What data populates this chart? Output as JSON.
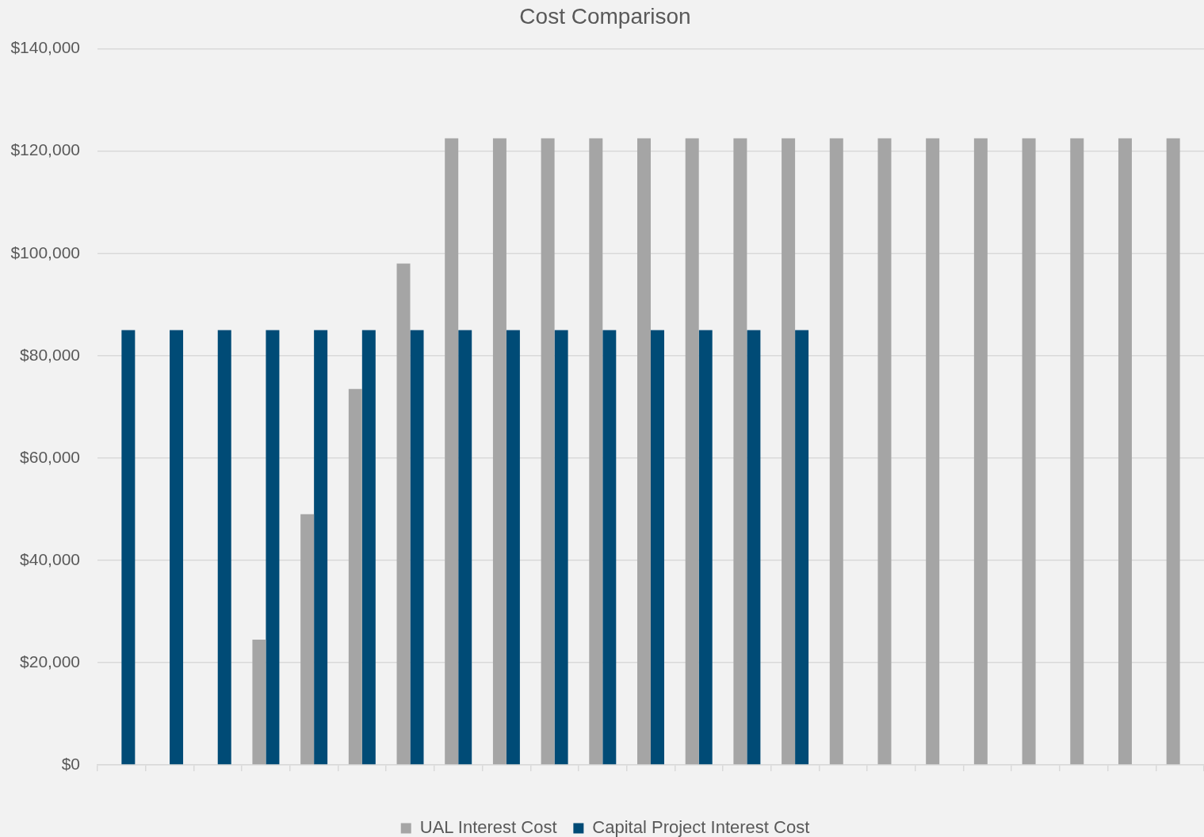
{
  "chart_data": {
    "type": "bar",
    "title": "Cost Comparison",
    "categories": [
      null,
      null,
      null,
      null,
      null,
      null,
      null,
      null,
      null,
      null,
      null,
      null,
      null,
      null,
      null,
      null,
      null,
      null,
      null,
      null,
      null,
      null,
      null
    ],
    "series": [
      {
        "name": "UAL Interest Cost",
        "color": "#a5a5a5",
        "values": [
          null,
          null,
          null,
          24500,
          49000,
          73500,
          98000,
          122500,
          122500,
          122500,
          122500,
          122500,
          122500,
          122500,
          122500,
          122500,
          122500,
          122500,
          122500,
          122500,
          122500,
          122500,
          122500
        ]
      },
      {
        "name": "Capital Project Interest Cost",
        "color": "#004b76",
        "values": [
          85000,
          85000,
          85000,
          85000,
          85000,
          85000,
          85000,
          85000,
          85000,
          85000,
          85000,
          85000,
          85000,
          85000,
          85000,
          null,
          null,
          null,
          null,
          null,
          null,
          null,
          null
        ]
      }
    ],
    "ylim": [
      0,
      140000
    ],
    "yticks": [
      {
        "value": 0,
        "label": "$0"
      },
      {
        "value": 20000,
        "label": "$20,000"
      },
      {
        "value": 40000,
        "label": "$40,000"
      },
      {
        "value": 60000,
        "label": "$60,000"
      },
      {
        "value": 80000,
        "label": "$80,000"
      },
      {
        "value": 100000,
        "label": "$100,000"
      },
      {
        "value": 120000,
        "label": "$120,000"
      },
      {
        "value": 140000,
        "label": "$140,000"
      }
    ],
    "grid": "y",
    "legend": "bottom",
    "tick_labels": "y"
  }
}
